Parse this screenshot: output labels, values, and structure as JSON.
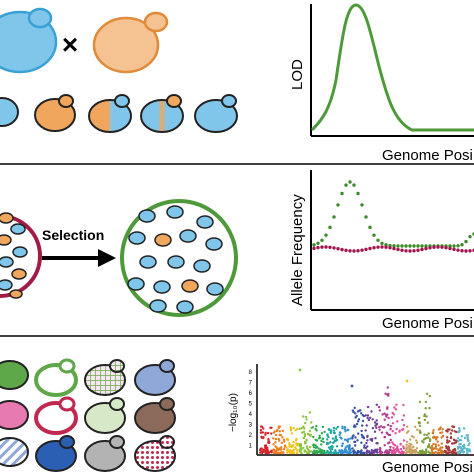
{
  "panel_a": {
    "cross_symbol": "×",
    "plot": {
      "ylabel": "LOD",
      "xlabel": "Genome Posi"
    }
  },
  "panel_b": {
    "arrow_label": "Selection",
    "plot": {
      "ylabel": "Allele Frequency",
      "xlabel": "Genome Posi"
    }
  },
  "panel_c": {
    "plot": {
      "ylabel": "−log₁₀(p)",
      "xlabel": "Genome Posi",
      "y_ticks": [
        "1",
        "2",
        "3",
        "4",
        "5",
        "6",
        "7",
        "8"
      ]
    }
  },
  "colors": {
    "parent_blue": "#7fc6ea",
    "parent_orange": "#f0a65c",
    "lod_green": "#4e9a3a",
    "dot_green": "#3d8a2a",
    "dot_magenta": "#a0154e",
    "flask_red": "#a01c45",
    "flask_green": "#4e9a3a"
  }
}
